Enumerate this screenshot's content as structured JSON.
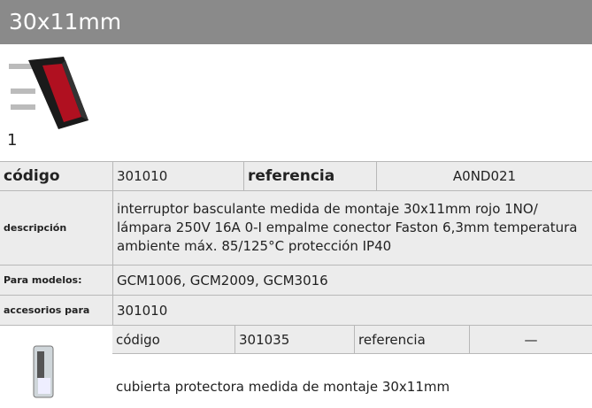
{
  "header": {
    "title": "30x11mm"
  },
  "product": {
    "image_label": "1"
  },
  "table": {
    "code_label": "código",
    "code": "301010",
    "reference_label": "referencia",
    "reference": "A0ND021",
    "description_label": "descripción",
    "description": "interruptor basculante  medida de montaje 30x11mm rojo 1NO/ lámpara 250V 16A 0-I empalme conector Faston 6,3mm temperatura ambiente máx. 85/125°C protección IP40",
    "models_label": "Para modelos:",
    "models": "GCM1006, GCM2009, GCM3016",
    "accessories_label": "accesorios para",
    "accessories": "301010"
  },
  "accessory": {
    "code_label": "código",
    "code": "301035",
    "reference_label": "referencia",
    "reference": "—",
    "description": "cubierta protectora  medida de montaje 30x11mm"
  }
}
